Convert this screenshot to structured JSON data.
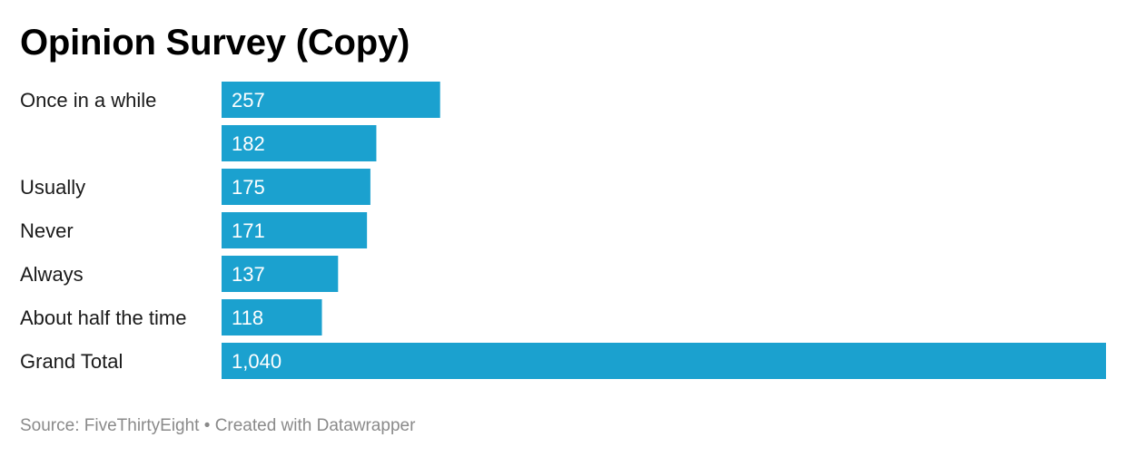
{
  "chart_data": {
    "type": "bar",
    "orientation": "horizontal",
    "title": "Opinion Survey (Copy)",
    "categories": [
      "Once in a while",
      "",
      "Usually",
      "Never",
      "Always",
      "About half the time",
      "Grand Total"
    ],
    "values": [
      257,
      182,
      175,
      171,
      137,
      118,
      1040
    ],
    "value_labels": [
      "257",
      "182",
      "175",
      "171",
      "137",
      "118",
      "1,040"
    ],
    "xlim": [
      0,
      1040
    ],
    "grid": false,
    "legend": "none",
    "bar_color": "#1ba1cf"
  },
  "footer": {
    "source_text": "Source: FiveThirtyEight",
    "separator": "•",
    "credit_text": "Created with Datawrapper"
  }
}
